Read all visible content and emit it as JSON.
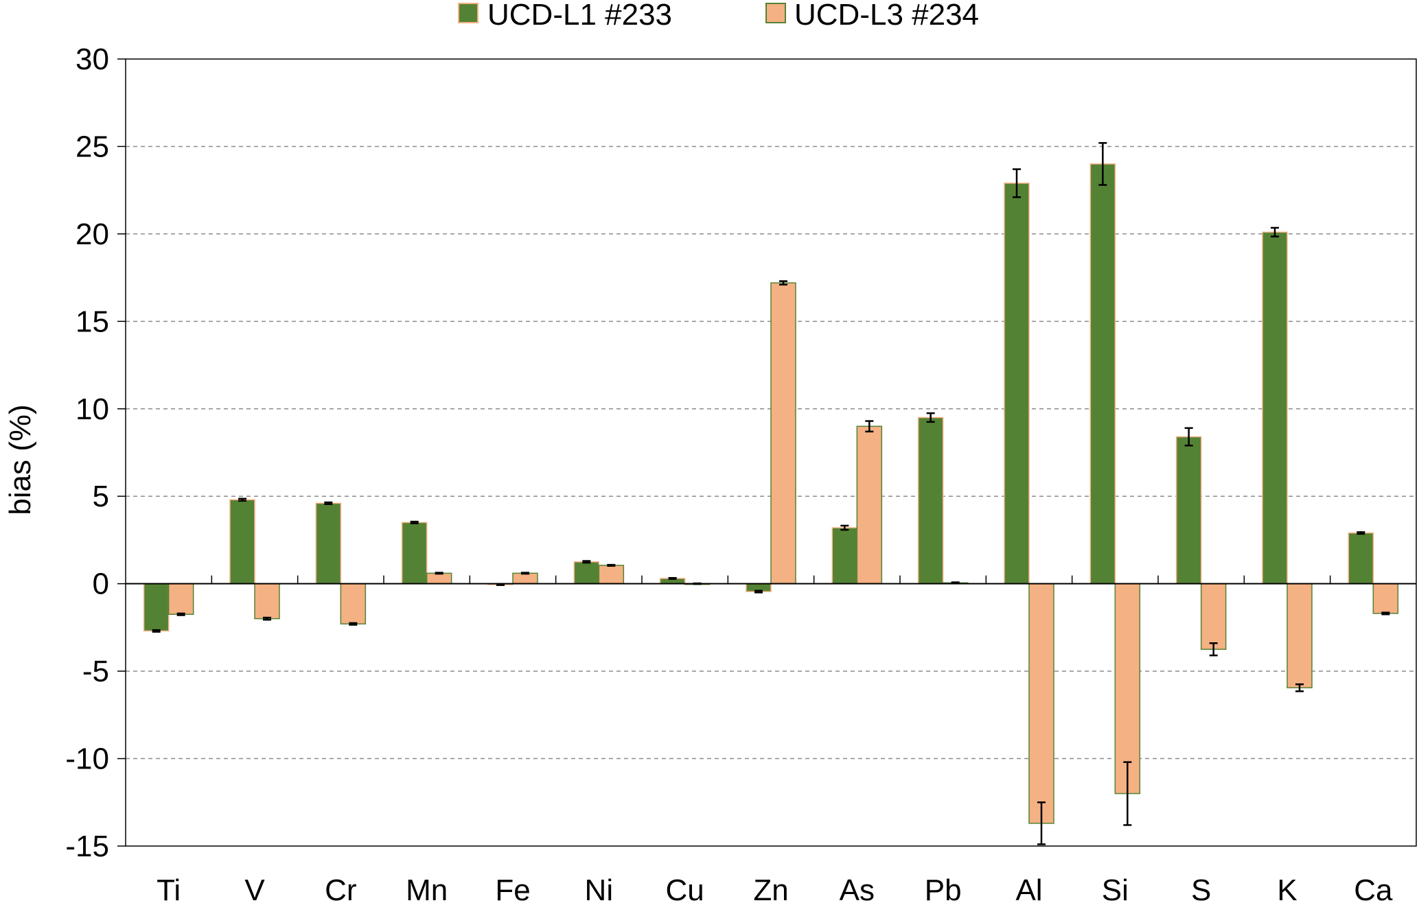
{
  "chart_data": {
    "type": "bar",
    "title": "",
    "xlabel": "",
    "ylabel": "bias (%)",
    "ylim": [
      -15,
      30
    ],
    "yticks": [
      -15,
      -10,
      -5,
      0,
      5,
      10,
      15,
      20,
      25,
      30
    ],
    "grid": "horizontal dashed",
    "legend_position": "top-center",
    "categories": [
      "Ti",
      "V",
      "Cr",
      "Mn",
      "Fe",
      "Ni",
      "Cu",
      "Zn",
      "As",
      "Pb",
      "Al",
      "Si",
      "S",
      "K",
      "Ca"
    ],
    "series": [
      {
        "name": "UCD-L1 #233",
        "color": "#548235",
        "edge_color": "#F4B183",
        "values": [
          -2.7,
          4.8,
          4.6,
          3.5,
          -0.05,
          1.25,
          0.3,
          -0.45,
          3.2,
          9.5,
          22.9,
          24.0,
          8.4,
          20.1,
          2.9
        ],
        "errors": [
          0.05,
          0.06,
          0.05,
          0.05,
          0.03,
          0.05,
          0.03,
          0.05,
          0.12,
          0.25,
          0.8,
          1.2,
          0.5,
          0.25,
          0.05
        ]
      },
      {
        "name": "UCD-L3 #234",
        "color": "#F4B183",
        "edge_color": "#548235",
        "values": [
          -1.75,
          -2.0,
          -2.3,
          0.6,
          0.6,
          1.05,
          0.0,
          17.2,
          9.0,
          0.05,
          -13.7,
          -12.0,
          -3.75,
          -5.95,
          -1.7
        ],
        "errors": [
          0.05,
          0.06,
          0.05,
          0.03,
          0.03,
          0.03,
          0.02,
          0.1,
          0.3,
          0.03,
          1.2,
          1.8,
          0.35,
          0.2,
          0.05
        ]
      }
    ]
  }
}
